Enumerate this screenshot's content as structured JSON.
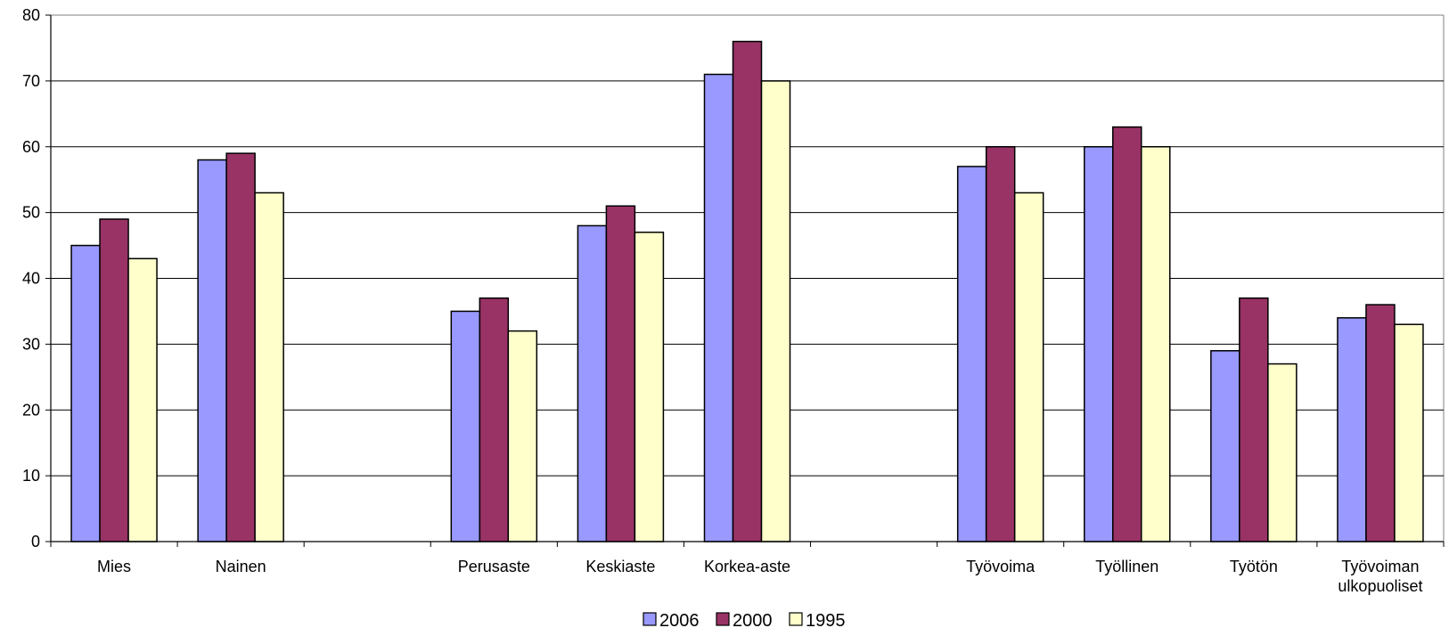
{
  "chart_data": {
    "type": "bar",
    "categories": [
      "Mies",
      "Nainen",
      "",
      "Perusaste",
      "Keskiaste",
      "Korkea-aste",
      "",
      "Työvoima",
      "Työllinen",
      "Työtön",
      "Työvoiman ulkopuoliset"
    ],
    "category_lines": [
      [
        "Mies"
      ],
      [
        "Nainen"
      ],
      [],
      [
        "Perusaste"
      ],
      [
        "Keskiaste"
      ],
      [
        "Korkea-aste"
      ],
      [],
      [
        "Työvoima"
      ],
      [
        "Työllinen"
      ],
      [
        "Työtön"
      ],
      [
        "Työvoiman",
        "ulkopuoliset"
      ]
    ],
    "series": [
      {
        "name": "2006",
        "color": "#9999ff",
        "values": [
          45,
          58,
          null,
          35,
          48,
          71,
          null,
          57,
          60,
          29,
          34
        ]
      },
      {
        "name": "2000",
        "color": "#993366",
        "values": [
          49,
          59,
          null,
          37,
          51,
          76,
          null,
          60,
          63,
          37,
          36
        ]
      },
      {
        "name": "1995",
        "color": "#ffffcc",
        "values": [
          43,
          53,
          null,
          32,
          47,
          70,
          null,
          53,
          60,
          27,
          33
        ]
      }
    ],
    "ylim": [
      0,
      80
    ],
    "yticks": [
      "0",
      "10",
      "20",
      "30",
      "40",
      "50",
      "60",
      "70",
      "80"
    ],
    "grid": true,
    "legend_position": "bottom-center",
    "title": "",
    "xlabel": "",
    "ylabel": ""
  }
}
